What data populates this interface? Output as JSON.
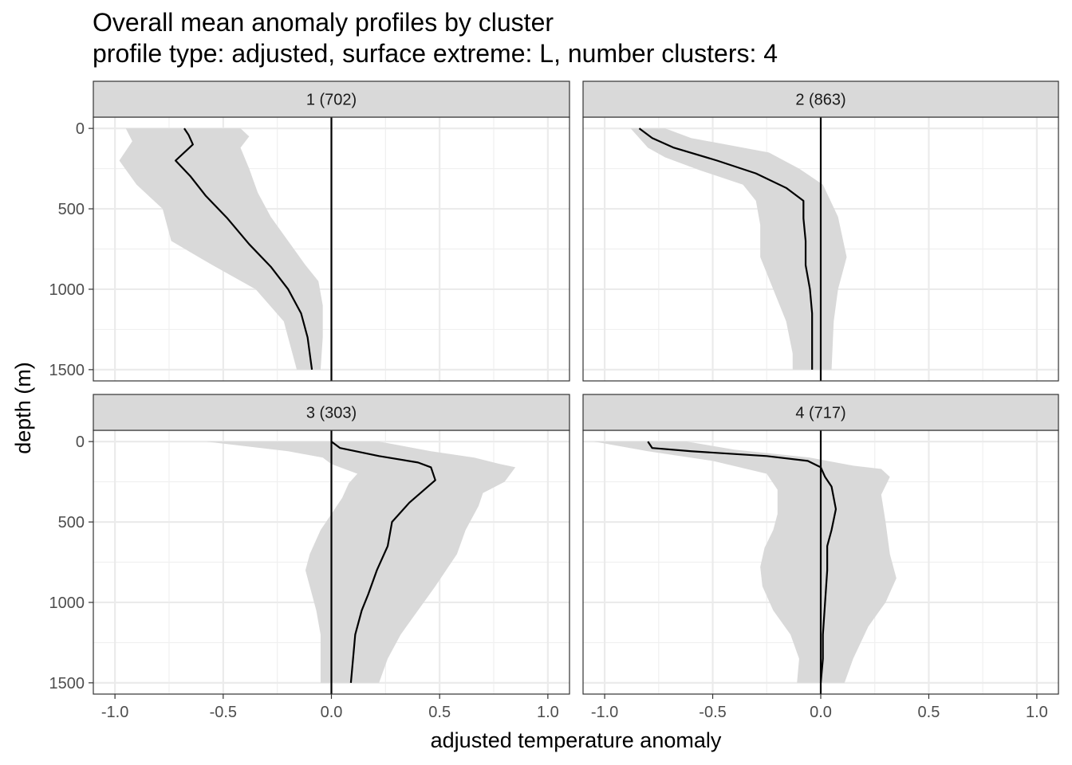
{
  "chart_data": {
    "type": "line",
    "title": "Overall mean anomaly profiles by cluster",
    "subtitle": "profile type: adjusted, surface extreme: L, number clusters: 4",
    "xlabel": "adjusted temperature anomaly",
    "ylabel": "depth (m)",
    "xlim": [
      -1.1,
      1.1
    ],
    "ylim": [
      1570,
      -70
    ],
    "y_reversed": true,
    "x_ticks": [
      -1.0,
      -0.5,
      0.0,
      0.5,
      1.0
    ],
    "x_tick_labels": [
      "-1.0",
      "-0.5",
      "0.0",
      "0.5",
      "1.0"
    ],
    "y_ticks": [
      0,
      500,
      1000,
      1500
    ],
    "y_tick_labels": [
      "0",
      "500",
      "1000",
      "1500"
    ],
    "grid": true,
    "reference_line_x": 0,
    "band_color": "#d9d9d9",
    "line_color": "#000000",
    "strip_color": "#d9d9d9",
    "panels": [
      {
        "label": "1 (702)",
        "mean": [
          [
            -0.68,
            0
          ],
          [
            -0.66,
            40
          ],
          [
            -0.64,
            100
          ],
          [
            -0.72,
            200
          ],
          [
            -0.65,
            300
          ],
          [
            -0.58,
            420
          ],
          [
            -0.48,
            560
          ],
          [
            -0.38,
            720
          ],
          [
            -0.28,
            860
          ],
          [
            -0.2,
            1000
          ],
          [
            -0.14,
            1150
          ],
          [
            -0.11,
            1300
          ],
          [
            -0.09,
            1500
          ]
        ],
        "lower": [
          [
            -0.95,
            0
          ],
          [
            -0.92,
            80
          ],
          [
            -0.98,
            200
          ],
          [
            -0.9,
            350
          ],
          [
            -0.78,
            500
          ],
          [
            -0.74,
            700
          ],
          [
            -0.55,
            850
          ],
          [
            -0.35,
            1000
          ],
          [
            -0.22,
            1200
          ],
          [
            -0.18,
            1400
          ],
          [
            -0.16,
            1500
          ]
        ],
        "upper": [
          [
            -0.42,
            0
          ],
          [
            -0.38,
            50
          ],
          [
            -0.42,
            120
          ],
          [
            -0.38,
            250
          ],
          [
            -0.34,
            400
          ],
          [
            -0.28,
            550
          ],
          [
            -0.2,
            700
          ],
          [
            -0.12,
            850
          ],
          [
            -0.06,
            950
          ],
          [
            -0.04,
            1100
          ],
          [
            -0.04,
            1300
          ],
          [
            -0.05,
            1500
          ]
        ]
      },
      {
        "label": "2 (863)",
        "mean": [
          [
            -0.84,
            0
          ],
          [
            -0.78,
            60
          ],
          [
            -0.68,
            120
          ],
          [
            -0.48,
            200
          ],
          [
            -0.3,
            280
          ],
          [
            -0.16,
            370
          ],
          [
            -0.08,
            450
          ],
          [
            -0.08,
            560
          ],
          [
            -0.07,
            700
          ],
          [
            -0.07,
            850
          ],
          [
            -0.05,
            1000
          ],
          [
            -0.04,
            1150
          ],
          [
            -0.04,
            1300
          ],
          [
            -0.04,
            1500
          ]
        ],
        "lower": [
          [
            -0.88,
            0
          ],
          [
            -0.84,
            60
          ],
          [
            -0.8,
            120
          ],
          [
            -0.72,
            180
          ],
          [
            -0.56,
            260
          ],
          [
            -0.36,
            350
          ],
          [
            -0.3,
            450
          ],
          [
            -0.28,
            600
          ],
          [
            -0.28,
            800
          ],
          [
            -0.22,
            1000
          ],
          [
            -0.16,
            1200
          ],
          [
            -0.13,
            1400
          ],
          [
            -0.13,
            1500
          ]
        ],
        "upper": [
          [
            -0.72,
            0
          ],
          [
            -0.6,
            60
          ],
          [
            -0.44,
            100
          ],
          [
            -0.24,
            150
          ],
          [
            -0.1,
            250
          ],
          [
            0.01,
            350
          ],
          [
            0.08,
            550
          ],
          [
            0.12,
            800
          ],
          [
            0.08,
            1000
          ],
          [
            0.06,
            1200
          ],
          [
            0.05,
            1500
          ]
        ]
      },
      {
        "label": "3 (303)",
        "mean": [
          [
            0.0,
            0
          ],
          [
            0.04,
            40
          ],
          [
            0.22,
            90
          ],
          [
            0.4,
            130
          ],
          [
            0.46,
            160
          ],
          [
            0.48,
            240
          ],
          [
            0.42,
            310
          ],
          [
            0.36,
            380
          ],
          [
            0.28,
            500
          ],
          [
            0.26,
            650
          ],
          [
            0.21,
            800
          ],
          [
            0.17,
            950
          ],
          [
            0.14,
            1050
          ],
          [
            0.11,
            1200
          ],
          [
            0.1,
            1350
          ],
          [
            0.09,
            1500
          ]
        ],
        "lower": [
          [
            -0.58,
            0
          ],
          [
            -0.2,
            60
          ],
          [
            -0.04,
            100
          ],
          [
            0.0,
            140
          ],
          [
            0.12,
            200
          ],
          [
            0.08,
            260
          ],
          [
            0.05,
            350
          ],
          [
            0.0,
            450
          ],
          [
            -0.05,
            550
          ],
          [
            -0.1,
            700
          ],
          [
            -0.12,
            800
          ],
          [
            -0.1,
            900
          ],
          [
            -0.07,
            1050
          ],
          [
            -0.05,
            1200
          ],
          [
            -0.05,
            1500
          ]
        ],
        "upper": [
          [
            0.22,
            0
          ],
          [
            0.46,
            60
          ],
          [
            0.66,
            100
          ],
          [
            0.78,
            140
          ],
          [
            0.85,
            160
          ],
          [
            0.8,
            250
          ],
          [
            0.7,
            320
          ],
          [
            0.68,
            400
          ],
          [
            0.62,
            550
          ],
          [
            0.58,
            700
          ],
          [
            0.48,
            900
          ],
          [
            0.4,
            1050
          ],
          [
            0.32,
            1200
          ],
          [
            0.26,
            1350
          ],
          [
            0.22,
            1500
          ]
        ]
      },
      {
        "label": "4 (717)",
        "mean": [
          [
            -0.8,
            0
          ],
          [
            -0.78,
            40
          ],
          [
            -0.6,
            60
          ],
          [
            -0.25,
            90
          ],
          [
            -0.06,
            120
          ],
          [
            0.0,
            160
          ],
          [
            0.02,
            220
          ],
          [
            0.05,
            280
          ],
          [
            0.07,
            420
          ],
          [
            0.05,
            550
          ],
          [
            0.03,
            650
          ],
          [
            0.03,
            800
          ],
          [
            0.02,
            1000
          ],
          [
            0.01,
            1200
          ],
          [
            0.01,
            1350
          ],
          [
            0.0,
            1500
          ]
        ],
        "lower": [
          [
            -1.05,
            0
          ],
          [
            -0.8,
            60
          ],
          [
            -0.5,
            120
          ],
          [
            -0.25,
            200
          ],
          [
            -0.2,
            300
          ],
          [
            -0.2,
            450
          ],
          [
            -0.22,
            550
          ],
          [
            -0.26,
            660
          ],
          [
            -0.28,
            780
          ],
          [
            -0.27,
            900
          ],
          [
            -0.22,
            1050
          ],
          [
            -0.14,
            1200
          ],
          [
            -0.1,
            1350
          ],
          [
            -0.11,
            1500
          ]
        ],
        "upper": [
          [
            -0.62,
            0
          ],
          [
            -0.4,
            50
          ],
          [
            -0.05,
            100
          ],
          [
            0.15,
            150
          ],
          [
            0.28,
            170
          ],
          [
            0.32,
            220
          ],
          [
            0.28,
            330
          ],
          [
            0.3,
            500
          ],
          [
            0.32,
            700
          ],
          [
            0.35,
            850
          ],
          [
            0.3,
            1000
          ],
          [
            0.22,
            1150
          ],
          [
            0.15,
            1350
          ],
          [
            0.11,
            1500
          ]
        ]
      }
    ]
  }
}
